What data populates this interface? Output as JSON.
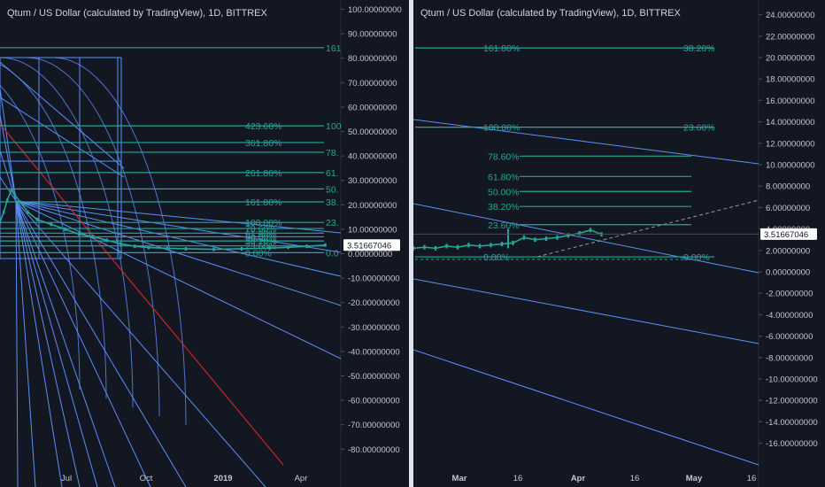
{
  "colors": {
    "background": "#131722",
    "fib": "#26a69a",
    "trend": "#5b8ff9",
    "red": "#c62828",
    "candle_up": "#26a69a",
    "axis_text": "#c4c8d0",
    "divider": "#e0e3eb"
  },
  "chart_data": [
    {
      "type": "line",
      "title": "Qtum / US Dollar (calculated by TradingView), 1D, BITTREX",
      "ylim": [
        -85,
        107
      ],
      "y_ticks": [
        "100.00000000",
        "90.00000000",
        "80.00000000",
        "70.00000000",
        "60.00000000",
        "50.00000000",
        "40.00000000",
        "30.00000000",
        "20.00000000",
        "10.00000000",
        "0.00000000",
        "-10.00000000",
        "-20.00000000",
        "-30.00000000",
        "-40.00000000",
        "-50.00000000",
        "-60.00000000",
        "-70.00000000",
        "-80.00000000"
      ],
      "y_tick_values": [
        100,
        90,
        80,
        70,
        60,
        50,
        40,
        30,
        20,
        10,
        0,
        -10,
        -20,
        -30,
        -40,
        -50,
        -60,
        -70,
        -80
      ],
      "x_ticks": [
        "Jul",
        "Oct",
        "2019",
        "Apr"
      ],
      "current_price": "3.51667046",
      "current_price_value": 3.52,
      "fib_levels": [
        {
          "left": "",
          "right": "161",
          "value": 84.3
        },
        {
          "left": "423.60%",
          "right": "100",
          "value": 52.3
        },
        {
          "left": "361.80%",
          "right": "",
          "value": 45.5
        },
        {
          "left": "",
          "right": "78.",
          "value": 41.5
        },
        {
          "left": "261.80%",
          "right": "61.",
          "value": 33.2
        },
        {
          "left": "",
          "right": "50.",
          "value": 26.5
        },
        {
          "left": "161.80%",
          "right": "38.",
          "value": 21.2
        },
        {
          "left": "100.00%",
          "right": "23.",
          "value": 12.8
        },
        {
          "left": "78.60%",
          "right": "",
          "value": 10.3
        },
        {
          "left": "61.80%",
          "right": "",
          "value": 8.4
        },
        {
          "left": "50.00%",
          "right": "",
          "value": 6.9
        },
        {
          "left": "38.20%",
          "right": "",
          "value": 5.2
        },
        {
          "left": "23.60%",
          "right": "",
          "value": 3.2
        },
        {
          "left": "0.00%",
          "right": "0.0",
          "value": 0.4
        }
      ],
      "price_series": [
        {
          "t": 0,
          "v": 13
        },
        {
          "t": 4,
          "v": 17
        },
        {
          "t": 8,
          "v": 22
        },
        {
          "t": 12,
          "v": 26
        },
        {
          "t": 16,
          "v": 24
        },
        {
          "t": 22,
          "v": 21
        },
        {
          "t": 30,
          "v": 17
        },
        {
          "t": 40,
          "v": 14
        },
        {
          "t": 55,
          "v": 12
        },
        {
          "t": 70,
          "v": 10
        },
        {
          "t": 85,
          "v": 8
        },
        {
          "t": 100,
          "v": 7
        },
        {
          "t": 115,
          "v": 5.5
        },
        {
          "t": 130,
          "v": 4
        },
        {
          "t": 145,
          "v": 3
        },
        {
          "t": 160,
          "v": 2.5
        },
        {
          "t": 180,
          "v": 2.2
        },
        {
          "t": 200,
          "v": 2
        },
        {
          "t": 230,
          "v": 1.8
        },
        {
          "t": 260,
          "v": 2
        },
        {
          "t": 290,
          "v": 2.3
        },
        {
          "t": 310,
          "v": 2.6
        },
        {
          "t": 330,
          "v": 3
        },
        {
          "t": 350,
          "v": 3.5
        }
      ]
    },
    {
      "type": "line",
      "title": "Qtum / US Dollar (calculated by TradingView), 1D, BITTREX",
      "ylim": [
        -17.6,
        24.6
      ],
      "y_ticks": [
        "24.00000000",
        "22.00000000",
        "20.00000000",
        "18.00000000",
        "16.00000000",
        "14.00000000",
        "12.00000000",
        "10.00000000",
        "8.00000000",
        "6.00000000",
        "4.00000000",
        "2.00000000",
        "0.00000000",
        "-2.00000000",
        "-4.00000000",
        "-6.00000000",
        "-8.00000000",
        "-10.00000000",
        "-12.00000000",
        "-14.00000000",
        "-16.00000000"
      ],
      "y_tick_values": [
        24,
        22,
        20,
        18,
        16,
        14,
        12,
        10,
        8,
        6,
        4,
        2,
        0,
        -2,
        -4,
        -6,
        -8,
        -10,
        -12,
        -14,
        -16
      ],
      "x_ticks": [
        "Mar",
        "16",
        "Apr",
        "16",
        "May",
        "16"
      ],
      "current_price": "3.51667046",
      "current_price_value": 3.52,
      "fib_levels": [
        {
          "left": "161.80%",
          "right": "38.20%",
          "value": 20.9
        },
        {
          "left": "100.00%",
          "right": "23.60%",
          "value": 13.5
        },
        {
          "left": "78.60%",
          "right": "",
          "value": 10.8
        },
        {
          "left": "61.80%",
          "right": "",
          "value": 8.9
        },
        {
          "left": "50.00%",
          "right": "",
          "value": 7.5
        },
        {
          "left": "38.20%",
          "right": "",
          "value": 6.1
        },
        {
          "left": "23.60%",
          "right": "",
          "value": 4.4
        },
        {
          "left": "0.00%",
          "right": "0.00%",
          "value": 1.4
        }
      ],
      "price_series": [
        {
          "t": 0,
          "v": 2.2
        },
        {
          "t": 10,
          "v": 2.3
        },
        {
          "t": 20,
          "v": 2.2
        },
        {
          "t": 30,
          "v": 2.4
        },
        {
          "t": 40,
          "v": 2.3
        },
        {
          "t": 50,
          "v": 2.5
        },
        {
          "t": 60,
          "v": 2.4
        },
        {
          "t": 70,
          "v": 2.5
        },
        {
          "t": 80,
          "v": 2.6
        },
        {
          "t": 90,
          "v": 2.7
        },
        {
          "t": 100,
          "v": 3.2
        },
        {
          "t": 110,
          "v": 3
        },
        {
          "t": 120,
          "v": 3.1
        },
        {
          "t": 130,
          "v": 3.2
        },
        {
          "t": 140,
          "v": 3.4
        },
        {
          "t": 150,
          "v": 3.6
        },
        {
          "t": 160,
          "v": 3.9
        },
        {
          "t": 170,
          "v": 3.5
        }
      ]
    }
  ]
}
